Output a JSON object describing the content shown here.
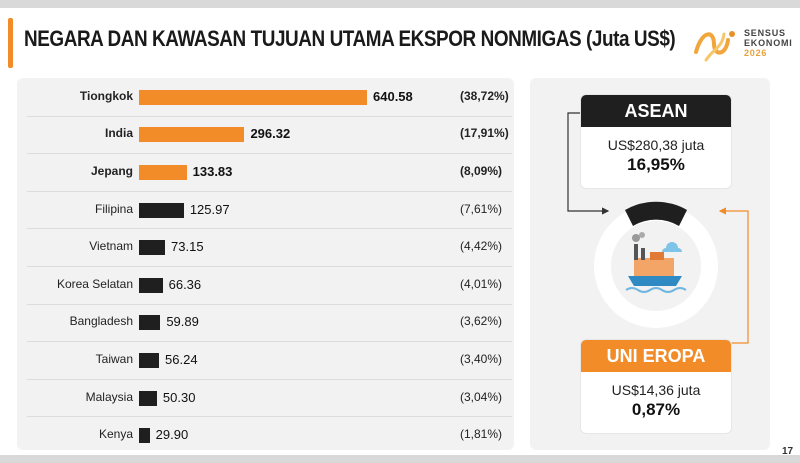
{
  "title": "NEGARA DAN KAWASAN TUJUAN UTAMA EKSPOR NONMIGAS (Juta US$)",
  "logo": {
    "line1": "SENSUS",
    "line2": "EKONOMI",
    "line3": "2026"
  },
  "colors": {
    "orange": "#F28C28",
    "dark": "#1F1F1F",
    "panel": "#F2F2F2"
  },
  "chart_data": {
    "type": "bar",
    "orientation": "horizontal",
    "title": "NEGARA DAN KAWASAN TUJUAN UTAMA EKSPOR NONMIGAS (Juta US$)",
    "categories": [
      "Tiongkok",
      "India",
      "Jepang",
      "Filipina",
      "Vietnam",
      "Korea Selatan",
      "Bangladesh",
      "Taiwan",
      "Malaysia",
      "Kenya"
    ],
    "values": [
      640.58,
      296.32,
      133.83,
      125.97,
      73.15,
      66.36,
      59.89,
      56.24,
      50.3,
      29.9
    ],
    "value_labels": [
      "640.58",
      "296.32",
      "133.83",
      "125.97",
      "73.15",
      "66.36",
      "59.89",
      "56.24",
      "50.30",
      "29.90"
    ],
    "shares": [
      "(38,72%)",
      "(17,91%)",
      "(8,09%)",
      "(7,61%)",
      "(4,42%)",
      "(4,01%)",
      "(3,62%)",
      "(3,40%)",
      "(3,04%)",
      "(1,81%)"
    ],
    "highlight_top": 3,
    "bar_colors": [
      "#F28C28",
      "#F28C28",
      "#F28C28",
      "#1F1F1F",
      "#1F1F1F",
      "#1F1F1F",
      "#1F1F1F",
      "#1F1F1F",
      "#1F1F1F",
      "#1F1F1F"
    ],
    "grid": false,
    "legend": "none"
  },
  "regions": {
    "asean": {
      "name": "ASEAN",
      "value_text": "US$280,38 juta",
      "share_text": "16,95%",
      "share": 16.95
    },
    "eu": {
      "name": "UNI EROPA",
      "value_text": "US$14,36 juta",
      "share_text": "0,87%",
      "share": 0.87
    }
  },
  "page_number": "17"
}
